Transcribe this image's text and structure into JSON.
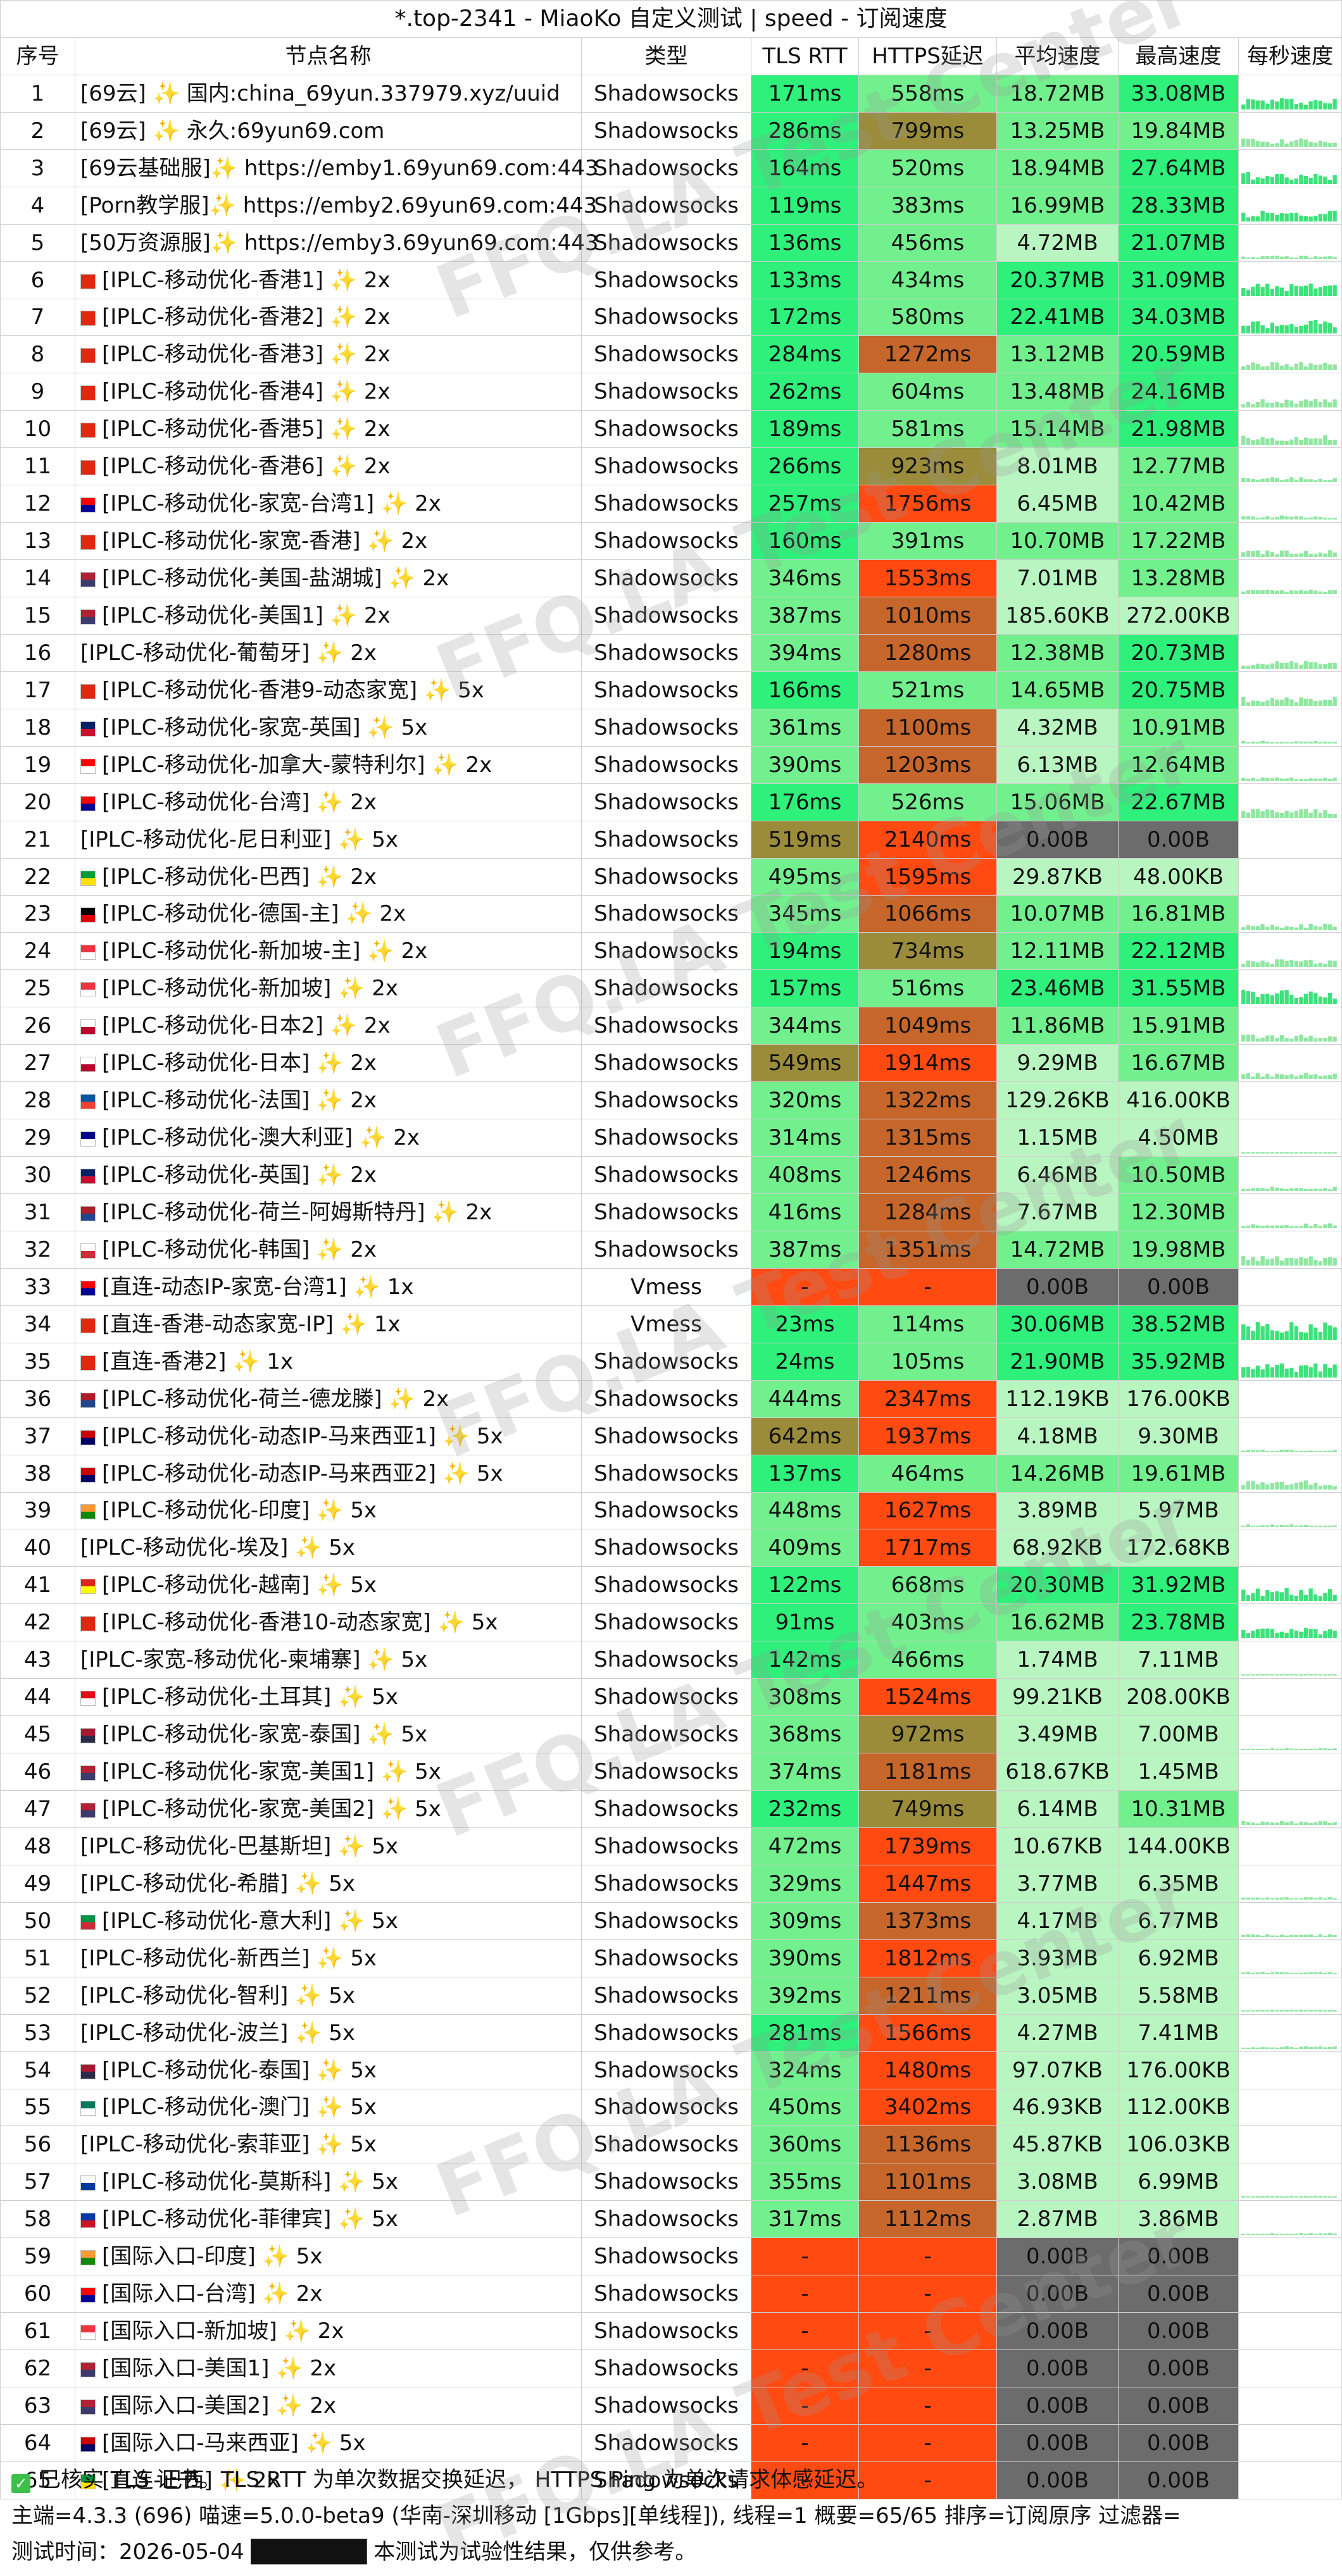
{
  "title": "*.top-2341 - MiaoKo 自定义测试 | speed - 订阅速度",
  "headers": [
    "序号",
    "节点名称",
    "类型",
    "TLS RTT",
    "HTTPS延迟",
    "平均速度",
    "最高速度",
    "每秒速度"
  ],
  "watermark": "FFQ.LA Test Center",
  "colors": {
    "fast_green": "#2ef07a",
    "good_green": "#73f08e",
    "light_green": "#b9f5c0",
    "olive": "#9a8c3a",
    "brown": "#c6662a",
    "red": "#ff4a12",
    "gray": "#6c6c6c"
  },
  "rows": [
    {
      "n": "1",
      "name": "[69云] ✨ 国内:china_69yun.337979.xyz/uuid",
      "flag": "",
      "type": "Shadowsocks",
      "tls": "171ms",
      "https": "558ms",
      "avg": "18.72MB",
      "max": "33.08MB"
    },
    {
      "n": "2",
      "name": "[69云] ✨ 永久:69yun69.com",
      "flag": "",
      "type": "Shadowsocks",
      "tls": "286ms",
      "https": "799ms",
      "avg": "13.25MB",
      "max": "19.84MB"
    },
    {
      "n": "3",
      "name": "[69云基础服]✨ https://emby1.69yun69.com:443",
      "flag": "",
      "type": "Shadowsocks",
      "tls": "164ms",
      "https": "520ms",
      "avg": "18.94MB",
      "max": "27.64MB"
    },
    {
      "n": "4",
      "name": "[Porn教学服]✨ https://emby2.69yun69.com:443",
      "flag": "",
      "type": "Shadowsocks",
      "tls": "119ms",
      "https": "383ms",
      "avg": "16.99MB",
      "max": "28.33MB"
    },
    {
      "n": "5",
      "name": "[50万资源服]✨ https://emby3.69yun69.com:443",
      "flag": "",
      "type": "Shadowsocks",
      "tls": "136ms",
      "https": "456ms",
      "avg": "4.72MB",
      "max": "21.07MB"
    },
    {
      "n": "6",
      "name": "[IPLC-移动优化-香港1] ✨ 2x",
      "flag": "hk",
      "type": "Shadowsocks",
      "tls": "133ms",
      "https": "434ms",
      "avg": "20.37MB",
      "max": "31.09MB"
    },
    {
      "n": "7",
      "name": "[IPLC-移动优化-香港2] ✨ 2x",
      "flag": "hk",
      "type": "Shadowsocks",
      "tls": "172ms",
      "https": "580ms",
      "avg": "22.41MB",
      "max": "34.03MB"
    },
    {
      "n": "8",
      "name": "[IPLC-移动优化-香港3] ✨ 2x",
      "flag": "hk",
      "type": "Shadowsocks",
      "tls": "284ms",
      "https": "1272ms",
      "avg": "13.12MB",
      "max": "20.59MB"
    },
    {
      "n": "9",
      "name": "[IPLC-移动优化-香港4] ✨ 2x",
      "flag": "hk",
      "type": "Shadowsocks",
      "tls": "262ms",
      "https": "604ms",
      "avg": "13.48MB",
      "max": "24.16MB"
    },
    {
      "n": "10",
      "name": "[IPLC-移动优化-香港5] ✨ 2x",
      "flag": "hk",
      "type": "Shadowsocks",
      "tls": "189ms",
      "https": "581ms",
      "avg": "15.14MB",
      "max": "21.98MB"
    },
    {
      "n": "11",
      "name": "[IPLC-移动优化-香港6] ✨ 2x",
      "flag": "hk",
      "type": "Shadowsocks",
      "tls": "266ms",
      "https": "923ms",
      "avg": "8.01MB",
      "max": "12.77MB"
    },
    {
      "n": "12",
      "name": "[IPLC-移动优化-家宽-台湾1] ✨ 2x",
      "flag": "tw",
      "type": "Shadowsocks",
      "tls": "257ms",
      "https": "1756ms",
      "avg": "6.45MB",
      "max": "10.42MB"
    },
    {
      "n": "13",
      "name": "[IPLC-移动优化-家宽-香港] ✨ 2x",
      "flag": "hk",
      "type": "Shadowsocks",
      "tls": "160ms",
      "https": "391ms",
      "avg": "10.70MB",
      "max": "17.22MB"
    },
    {
      "n": "14",
      "name": "[IPLC-移动优化-美国-盐湖城] ✨ 2x",
      "flag": "us",
      "type": "Shadowsocks",
      "tls": "346ms",
      "https": "1553ms",
      "avg": "7.01MB",
      "max": "13.28MB"
    },
    {
      "n": "15",
      "name": "[IPLC-移动优化-美国1] ✨ 2x",
      "flag": "us",
      "type": "Shadowsocks",
      "tls": "387ms",
      "https": "1010ms",
      "avg": "185.60KB",
      "max": "272.00KB"
    },
    {
      "n": "16",
      "name": "[IPLC-移动优化-葡萄牙] ✨ 2x",
      "flag": "",
      "type": "Shadowsocks",
      "tls": "394ms",
      "https": "1280ms",
      "avg": "12.38MB",
      "max": "20.73MB"
    },
    {
      "n": "17",
      "name": "[IPLC-移动优化-香港9-动态家宽] ✨ 5x",
      "flag": "hk",
      "type": "Shadowsocks",
      "tls": "166ms",
      "https": "521ms",
      "avg": "14.65MB",
      "max": "20.75MB"
    },
    {
      "n": "18",
      "name": "[IPLC-移动优化-家宽-英国] ✨ 5x",
      "flag": "gb",
      "type": "Shadowsocks",
      "tls": "361ms",
      "https": "1100ms",
      "avg": "4.32MB",
      "max": "10.91MB"
    },
    {
      "n": "19",
      "name": "[IPLC-移动优化-加拿大-蒙特利尔] ✨ 2x",
      "flag": "ca",
      "type": "Shadowsocks",
      "tls": "390ms",
      "https": "1203ms",
      "avg": "6.13MB",
      "max": "12.64MB"
    },
    {
      "n": "20",
      "name": "[IPLC-移动优化-台湾] ✨ 2x",
      "flag": "tw",
      "type": "Shadowsocks",
      "tls": "176ms",
      "https": "526ms",
      "avg": "15.06MB",
      "max": "22.67MB"
    },
    {
      "n": "21",
      "name": "[IPLC-移动优化-尼日利亚] ✨ 5x",
      "flag": "",
      "type": "Shadowsocks",
      "tls": "519ms",
      "https": "2140ms",
      "avg": "0.00B",
      "max": "0.00B"
    },
    {
      "n": "22",
      "name": "[IPLC-移动优化-巴西] ✨ 2x",
      "flag": "br",
      "type": "Shadowsocks",
      "tls": "495ms",
      "https": "1595ms",
      "avg": "29.87KB",
      "max": "48.00KB"
    },
    {
      "n": "23",
      "name": "[IPLC-移动优化-德国-主] ✨ 2x",
      "flag": "de",
      "type": "Shadowsocks",
      "tls": "345ms",
      "https": "1066ms",
      "avg": "10.07MB",
      "max": "16.81MB"
    },
    {
      "n": "24",
      "name": "[IPLC-移动优化-新加坡-主] ✨ 2x",
      "flag": "sg",
      "type": "Shadowsocks",
      "tls": "194ms",
      "https": "734ms",
      "avg": "12.11MB",
      "max": "22.12MB"
    },
    {
      "n": "25",
      "name": "[IPLC-移动优化-新加坡] ✨ 2x",
      "flag": "sg",
      "type": "Shadowsocks",
      "tls": "157ms",
      "https": "516ms",
      "avg": "23.46MB",
      "max": "31.55MB"
    },
    {
      "n": "26",
      "name": "[IPLC-移动优化-日本2] ✨ 2x",
      "flag": "jp",
      "type": "Shadowsocks",
      "tls": "344ms",
      "https": "1049ms",
      "avg": "11.86MB",
      "max": "15.91MB"
    },
    {
      "n": "27",
      "name": "[IPLC-移动优化-日本] ✨ 2x",
      "flag": "jp",
      "type": "Shadowsocks",
      "tls": "549ms",
      "https": "1914ms",
      "avg": "9.29MB",
      "max": "16.67MB"
    },
    {
      "n": "28",
      "name": "[IPLC-移动优化-法国] ✨ 2x",
      "flag": "fr",
      "type": "Shadowsocks",
      "tls": "320ms",
      "https": "1322ms",
      "avg": "129.26KB",
      "max": "416.00KB"
    },
    {
      "n": "29",
      "name": "[IPLC-移动优化-澳大利亚] ✨ 2x",
      "flag": "au",
      "type": "Shadowsocks",
      "tls": "314ms",
      "https": "1315ms",
      "avg": "1.15MB",
      "max": "4.50MB"
    },
    {
      "n": "30",
      "name": "[IPLC-移动优化-英国] ✨ 2x",
      "flag": "gb",
      "type": "Shadowsocks",
      "tls": "408ms",
      "https": "1246ms",
      "avg": "6.46MB",
      "max": "10.50MB"
    },
    {
      "n": "31",
      "name": "[IPLC-移动优化-荷兰-阿姆斯特丹] ✨ 2x",
      "flag": "nl",
      "type": "Shadowsocks",
      "tls": "416ms",
      "https": "1284ms",
      "avg": "7.67MB",
      "max": "12.30MB"
    },
    {
      "n": "32",
      "name": "[IPLC-移动优化-韩国] ✨ 2x",
      "flag": "kr",
      "type": "Shadowsocks",
      "tls": "387ms",
      "https": "1351ms",
      "avg": "14.72MB",
      "max": "19.98MB"
    },
    {
      "n": "33",
      "name": "[直连-动态IP-家宽-台湾1] ✨ 1x",
      "flag": "tw",
      "type": "Vmess",
      "tls": "-",
      "https": "-",
      "avg": "0.00B",
      "max": "0.00B"
    },
    {
      "n": "34",
      "name": "[直连-香港-动态家宽-IP] ✨ 1x",
      "flag": "hk",
      "type": "Vmess",
      "tls": "23ms",
      "https": "114ms",
      "avg": "30.06MB",
      "max": "38.52MB"
    },
    {
      "n": "35",
      "name": "[直连-香港2] ✨ 1x",
      "flag": "hk",
      "type": "Shadowsocks",
      "tls": "24ms",
      "https": "105ms",
      "avg": "21.90MB",
      "max": "35.92MB"
    },
    {
      "n": "36",
      "name": "[IPLC-移动优化-荷兰-德龙滕] ✨ 2x",
      "flag": "nl",
      "type": "Shadowsocks",
      "tls": "444ms",
      "https": "2347ms",
      "avg": "112.19KB",
      "max": "176.00KB"
    },
    {
      "n": "37",
      "name": "[IPLC-移动优化-动态IP-马来西亚1] ✨ 5x",
      "flag": "my",
      "type": "Shadowsocks",
      "tls": "642ms",
      "https": "1937ms",
      "avg": "4.18MB",
      "max": "9.30MB"
    },
    {
      "n": "38",
      "name": "[IPLC-移动优化-动态IP-马来西亚2] ✨ 5x",
      "flag": "my",
      "type": "Shadowsocks",
      "tls": "137ms",
      "https": "464ms",
      "avg": "14.26MB",
      "max": "19.61MB"
    },
    {
      "n": "39",
      "name": "[IPLC-移动优化-印度] ✨ 5x",
      "flag": "in",
      "type": "Shadowsocks",
      "tls": "448ms",
      "https": "1627ms",
      "avg": "3.89MB",
      "max": "5.97MB"
    },
    {
      "n": "40",
      "name": "[IPLC-移动优化-埃及] ✨ 5x",
      "flag": "",
      "type": "Shadowsocks",
      "tls": "409ms",
      "https": "1717ms",
      "avg": "68.92KB",
      "max": "172.68KB"
    },
    {
      "n": "41",
      "name": "[IPLC-移动优化-越南] ✨ 5x",
      "flag": "vn",
      "type": "Shadowsocks",
      "tls": "122ms",
      "https": "668ms",
      "avg": "20.30MB",
      "max": "31.92MB"
    },
    {
      "n": "42",
      "name": "[IPLC-移动优化-香港10-动态家宽] ✨ 5x",
      "flag": "hk",
      "type": "Shadowsocks",
      "tls": "91ms",
      "https": "403ms",
      "avg": "16.62MB",
      "max": "23.78MB"
    },
    {
      "n": "43",
      "name": "[IPLC-家宽-移动优化-柬埔寨] ✨ 5x",
      "flag": "",
      "type": "Shadowsocks",
      "tls": "142ms",
      "https": "466ms",
      "avg": "1.74MB",
      "max": "7.11MB"
    },
    {
      "n": "44",
      "name": "[IPLC-移动优化-土耳其] ✨ 5x",
      "flag": "tr",
      "type": "Shadowsocks",
      "tls": "308ms",
      "https": "1524ms",
      "avg": "99.21KB",
      "max": "208.00KB"
    },
    {
      "n": "45",
      "name": "[IPLC-移动优化-家宽-泰国] ✨ 5x",
      "flag": "th",
      "type": "Shadowsocks",
      "tls": "368ms",
      "https": "972ms",
      "avg": "3.49MB",
      "max": "7.00MB"
    },
    {
      "n": "46",
      "name": "[IPLC-移动优化-家宽-美国1] ✨ 5x",
      "flag": "us",
      "type": "Shadowsocks",
      "tls": "374ms",
      "https": "1181ms",
      "avg": "618.67KB",
      "max": "1.45MB"
    },
    {
      "n": "47",
      "name": "[IPLC-移动优化-家宽-美国2] ✨ 5x",
      "flag": "us",
      "type": "Shadowsocks",
      "tls": "232ms",
      "https": "749ms",
      "avg": "6.14MB",
      "max": "10.31MB"
    },
    {
      "n": "48",
      "name": "[IPLC-移动优化-巴基斯坦] ✨ 5x",
      "flag": "",
      "type": "Shadowsocks",
      "tls": "472ms",
      "https": "1739ms",
      "avg": "10.67KB",
      "max": "144.00KB"
    },
    {
      "n": "49",
      "name": "[IPLC-移动优化-希腊] ✨ 5x",
      "flag": "",
      "type": "Shadowsocks",
      "tls": "329ms",
      "https": "1447ms",
      "avg": "3.77MB",
      "max": "6.35MB"
    },
    {
      "n": "50",
      "name": "[IPLC-移动优化-意大利] ✨ 5x",
      "flag": "it",
      "type": "Shadowsocks",
      "tls": "309ms",
      "https": "1373ms",
      "avg": "4.17MB",
      "max": "6.77MB"
    },
    {
      "n": "51",
      "name": "[IPLC-移动优化-新西兰] ✨ 5x",
      "flag": "",
      "type": "Shadowsocks",
      "tls": "390ms",
      "https": "1812ms",
      "avg": "3.93MB",
      "max": "6.92MB"
    },
    {
      "n": "52",
      "name": "[IPLC-移动优化-智利] ✨ 5x",
      "flag": "",
      "type": "Shadowsocks",
      "tls": "392ms",
      "https": "1211ms",
      "avg": "3.05MB",
      "max": "5.58MB"
    },
    {
      "n": "53",
      "name": "[IPLC-移动优化-波兰] ✨ 5x",
      "flag": "",
      "type": "Shadowsocks",
      "tls": "281ms",
      "https": "1566ms",
      "avg": "4.27MB",
      "max": "7.41MB"
    },
    {
      "n": "54",
      "name": "[IPLC-移动优化-泰国] ✨ 5x",
      "flag": "th",
      "type": "Shadowsocks",
      "tls": "324ms",
      "https": "1480ms",
      "avg": "97.07KB",
      "max": "176.00KB"
    },
    {
      "n": "55",
      "name": "[IPLC-移动优化-澳门] ✨ 5x",
      "flag": "mo",
      "type": "Shadowsocks",
      "tls": "450ms",
      "https": "3402ms",
      "avg": "46.93KB",
      "max": "112.00KB"
    },
    {
      "n": "56",
      "name": "[IPLC-移动优化-索菲亚] ✨ 5x",
      "flag": "",
      "type": "Shadowsocks",
      "tls": "360ms",
      "https": "1136ms",
      "avg": "45.87KB",
      "max": "106.03KB"
    },
    {
      "n": "57",
      "name": "[IPLC-移动优化-莫斯科] ✨ 5x",
      "flag": "ru",
      "type": "Shadowsocks",
      "tls": "355ms",
      "https": "1101ms",
      "avg": "3.08MB",
      "max": "6.99MB"
    },
    {
      "n": "58",
      "name": "[IPLC-移动优化-菲律宾] ✨ 5x",
      "flag": "ph",
      "type": "Shadowsocks",
      "tls": "317ms",
      "https": "1112ms",
      "avg": "2.87MB",
      "max": "3.86MB"
    },
    {
      "n": "59",
      "name": "[国际入口-印度] ✨ 5x",
      "flag": "in",
      "type": "Shadowsocks",
      "tls": "-",
      "https": "-",
      "avg": "0.00B",
      "max": "0.00B"
    },
    {
      "n": "60",
      "name": "[国际入口-台湾] ✨ 2x",
      "flag": "tw",
      "type": "Shadowsocks",
      "tls": "-",
      "https": "-",
      "avg": "0.00B",
      "max": "0.00B"
    },
    {
      "n": "61",
      "name": "[国际入口-新加坡] ✨ 2x",
      "flag": "sg",
      "type": "Shadowsocks",
      "tls": "-",
      "https": "-",
      "avg": "0.00B",
      "max": "0.00B"
    },
    {
      "n": "62",
      "name": "[国际入口-美国1] ✨ 2x",
      "flag": "us",
      "type": "Shadowsocks",
      "tls": "-",
      "https": "-",
      "avg": "0.00B",
      "max": "0.00B"
    },
    {
      "n": "63",
      "name": "[国际入口-美国2] ✨ 2x",
      "flag": "us",
      "type": "Shadowsocks",
      "tls": "-",
      "https": "-",
      "avg": "0.00B",
      "max": "0.00B"
    },
    {
      "n": "64",
      "name": "[国际入口-马来西亚] ✨ 5x",
      "flag": "my",
      "type": "Shadowsocks",
      "tls": "-",
      "https": "-",
      "avg": "0.00B",
      "max": "0.00B"
    },
    {
      "n": "65",
      "name": "[直连-巴西] ✨ 2x",
      "flag": "br",
      "type": "Shadowsocks",
      "tls": "-",
      "https": "-",
      "avg": "0.00B",
      "max": "0.00B"
    }
  ],
  "footer": {
    "line1": "已核实 TLS 证书。TLS RTT 为单次数据交换延迟， HTTPS Ping 为单次请求体感延迟。",
    "line2": "主端=4.3.3 (696) 喵速=5.0.0-beta9 (华南-深圳移动 [1Gbps][单线程]), 线程=1 概要=65/65 排序=订阅原序 过滤器=",
    "line3": "测试时间：2026-05-04 ███████ 本测试为试验性结果，仅供参考。"
  }
}
